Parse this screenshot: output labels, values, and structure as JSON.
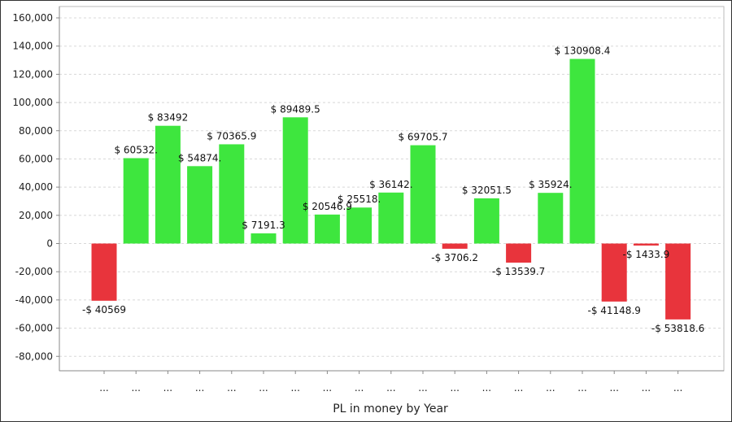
{
  "chart_data": {
    "type": "bar",
    "xlabel": "PL in money by Year",
    "ylabel": "",
    "ylim": [
      -90000,
      165000
    ],
    "yticks": [
      160000,
      140000,
      120000,
      100000,
      80000,
      60000,
      40000,
      20000,
      0,
      -20000,
      -40000,
      -60000,
      -80000
    ],
    "ytick_labels": [
      "160,000",
      "140,000",
      "120,000",
      "100,000",
      "80,000",
      "60,000",
      "40,000",
      "20,000",
      "0",
      "-20,000",
      "-40,000",
      "-60,000",
      "-80,000"
    ],
    "grid": true,
    "categories": [
      "...",
      "...",
      "...",
      "...",
      "...",
      "...",
      "...",
      "...",
      "...",
      "...",
      "...",
      "...",
      "...",
      "...",
      "...",
      "...",
      "...",
      "...",
      "..."
    ],
    "values": [
      -40569,
      60532,
      83492,
      54874,
      70365.9,
      7191.3,
      89489.5,
      20546.9,
      25518,
      36142,
      69705.7,
      -3706.2,
      32051.5,
      -13539.7,
      35924,
      130908.4,
      -41148.9,
      -1433.9,
      -53818.6
    ],
    "data_labels": [
      "-$ 40569",
      "$ 60532.",
      "$ 83492",
      "$ 54874.",
      "$ 70365.9",
      "$ 7191.3",
      "$ 89489.5",
      "$ 20546.9",
      "$ 25518.",
      "$ 36142.",
      "$ 69705.7",
      "-$ 3706.2",
      "$ 32051.5",
      "-$ 13539.7",
      "$ 35924.",
      "$ 130908.4",
      "-$ 41148.9",
      "-$ 1433.9",
      "-$ 53818.6"
    ],
    "colors": {
      "positive": "#3ee63e",
      "negative": "#e8343c",
      "grid": "#d8d8d8",
      "axis": "#888888"
    }
  }
}
